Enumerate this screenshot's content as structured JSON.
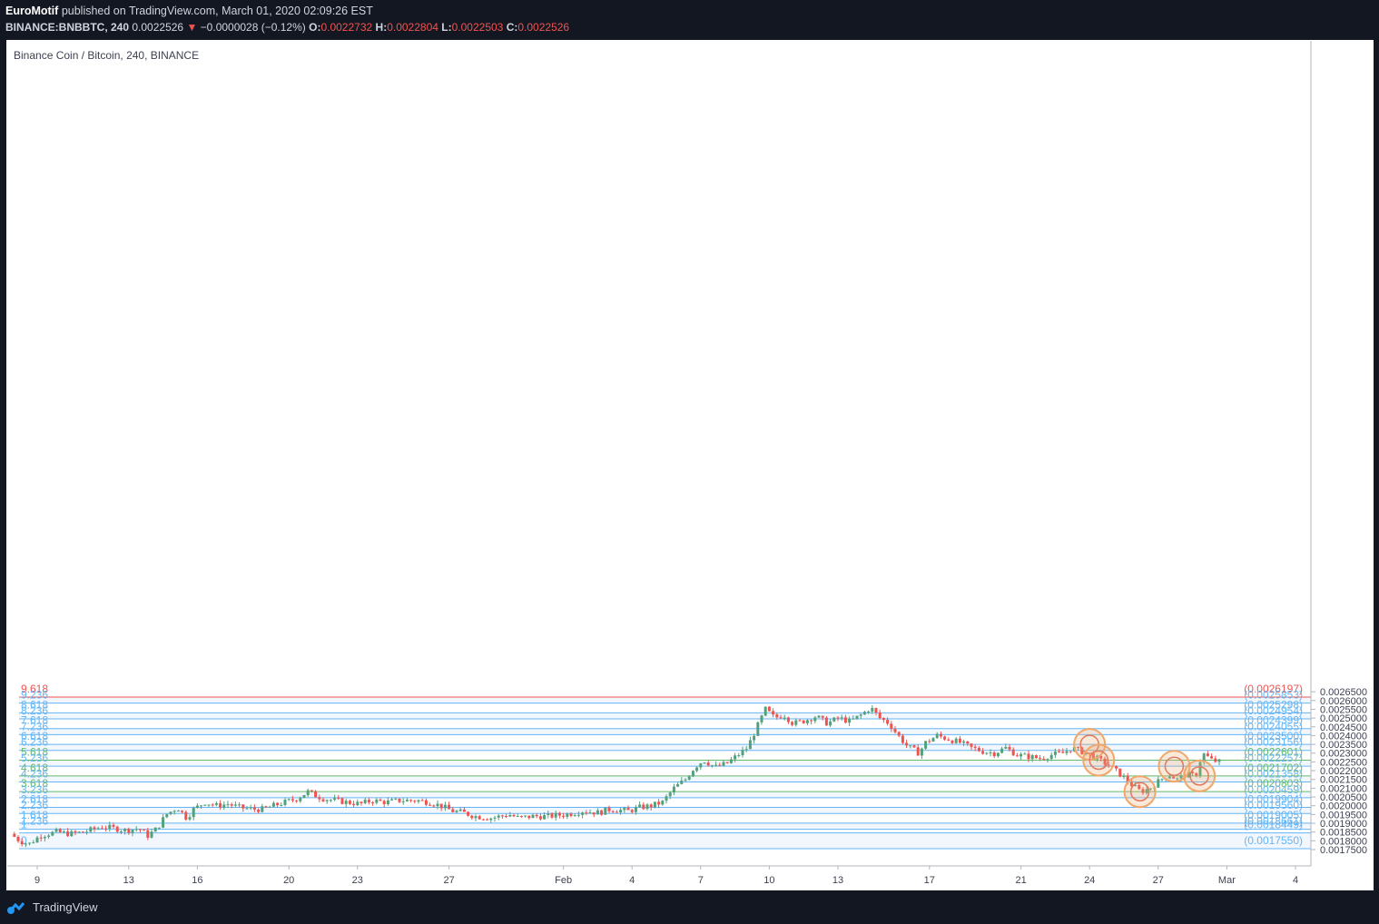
{
  "header": {
    "publisher": "EuroMotif",
    "published_text": "published on TradingView.com, March 01, 2020 02:09:26 EST",
    "symbol": "BINANCE:BNBBTC, 240",
    "last": "0.0022526",
    "change": "−0.0000028 (−0.12%)",
    "o_label": "O:",
    "o": "0.0022732",
    "h_label": "H:",
    "h": "0.0022804",
    "l_label": "L:",
    "l": "0.0022503",
    "c_label": "C:",
    "c": "0.0022526"
  },
  "chart_title": "Binance Coin / Bitcoin, 240, BINANCE",
  "footer": {
    "brand": "TradingView"
  },
  "colors": {
    "up": "#53a17c",
    "down": "#ef5350",
    "fib_blue": "#64b5f6",
    "fib_green": "#66bb6a",
    "fib_red": "#ef5350",
    "marker": "#f0a76a"
  },
  "chart_data": {
    "type": "candlestick",
    "title": "Binance Coin / Bitcoin, 240, BINANCE",
    "ylim": [
      0.00172,
      0.00268
    ],
    "y_ticks": [
      "0.0017500",
      "0.0018000",
      "0.0018500",
      "0.0019000",
      "0.0019500",
      "0.0020000",
      "0.0020500",
      "0.0021000",
      "0.0021500",
      "0.0022000",
      "0.0022500",
      "0.0023000",
      "0.0023500",
      "0.0024000",
      "0.0024500",
      "0.0025000",
      "0.0025500",
      "0.0026000",
      "0.0026500"
    ],
    "x_ticks": [
      {
        "label": "9",
        "day": 9
      },
      {
        "label": "13",
        "day": 13
      },
      {
        "label": "16",
        "day": 16
      },
      {
        "label": "20",
        "day": 20
      },
      {
        "label": "23",
        "day": 23
      },
      {
        "label": "27",
        "day": 27
      },
      {
        "label": "Feb",
        "day": 32
      },
      {
        "label": "4",
        "day": 35
      },
      {
        "label": "7",
        "day": 38
      },
      {
        "label": "10",
        "day": 41
      },
      {
        "label": "13",
        "day": 44
      },
      {
        "label": "17",
        "day": 48
      },
      {
        "label": "21",
        "day": 52
      },
      {
        "label": "24",
        "day": 55
      },
      {
        "label": "27",
        "day": 58
      },
      {
        "label": "Mar",
        "day": 61
      },
      {
        "label": "4",
        "day": 64
      }
    ],
    "fib_levels": [
      {
        "ratio": "9.618",
        "price": "0.0026197",
        "color": "red"
      },
      {
        "ratio": "9.236",
        "price": "0.0025853",
        "color": "blue"
      },
      {
        "ratio": "8.618",
        "price": "0.0025298",
        "color": "blue"
      },
      {
        "ratio": "8.236",
        "price": "0.0024954",
        "color": "blue"
      },
      {
        "ratio": "7.618",
        "price": "0.0024399",
        "color": "blue"
      },
      {
        "ratio": "7.236",
        "price": "0.0024055",
        "color": "blue"
      },
      {
        "ratio": "6.618",
        "price": "0.0023500",
        "color": "blue"
      },
      {
        "ratio": "6.236",
        "price": "0.0023156",
        "color": "blue"
      },
      {
        "ratio": "5.618",
        "price": "0.0022601",
        "color": "green"
      },
      {
        "ratio": "5.236",
        "price": "0.0022257",
        "color": "blue"
      },
      {
        "ratio": "4.618",
        "price": "0.0021702",
        "color": "green"
      },
      {
        "ratio": "4.236",
        "price": "0.0021358",
        "color": "blue"
      },
      {
        "ratio": "3.618",
        "price": "0.0020803",
        "color": "green"
      },
      {
        "ratio": "3.236",
        "price": "0.0020459",
        "color": "blue"
      },
      {
        "ratio": "2.618",
        "price": "0.0019904",
        "color": "blue"
      },
      {
        "ratio": "2.236",
        "price": "0.0019560",
        "color": "blue"
      },
      {
        "ratio": "1.618",
        "price": "0.0019005",
        "color": "blue"
      },
      {
        "ratio": "1.236",
        "price": "0.0018661",
        "color": "blue"
      },
      {
        "ratio": "1",
        "price": "0.0018449",
        "color": "blue"
      },
      {
        "ratio": "0",
        "price": "0.0017550",
        "color": "blue"
      }
    ],
    "price_path": [
      [
        8.0,
        0.00184
      ],
      [
        8.4,
        0.0018
      ],
      [
        8.8,
        0.00178
      ],
      [
        9.3,
        0.00183
      ],
      [
        10.0,
        0.00185
      ],
      [
        10.6,
        0.00184
      ],
      [
        11.2,
        0.00185
      ],
      [
        12.0,
        0.00188
      ],
      [
        12.6,
        0.00187
      ],
      [
        13.0,
        0.00186
      ],
      [
        13.6,
        0.00187
      ],
      [
        14.0,
        0.00183
      ],
      [
        14.4,
        0.00187
      ],
      [
        14.8,
        0.00195
      ],
      [
        15.3,
        0.00199
      ],
      [
        15.7,
        0.00193
      ],
      [
        16.0,
        0.00198
      ],
      [
        16.5,
        0.00202
      ],
      [
        17.0,
        0.002
      ],
      [
        17.5,
        0.00201
      ],
      [
        18.0,
        0.00199
      ],
      [
        18.6,
        0.00198
      ],
      [
        19.0,
        0.00198
      ],
      [
        19.5,
        0.002
      ],
      [
        20.0,
        0.00202
      ],
      [
        20.5,
        0.00204
      ],
      [
        21.0,
        0.00208
      ],
      [
        21.3,
        0.00206
      ],
      [
        21.7,
        0.00204
      ],
      [
        22.2,
        0.00203
      ],
      [
        22.7,
        0.00202
      ],
      [
        23.3,
        0.00201
      ],
      [
        23.8,
        0.00203
      ],
      [
        24.4,
        0.00202
      ],
      [
        25.0,
        0.00203
      ],
      [
        25.8,
        0.00203
      ],
      [
        26.3,
        0.00202
      ],
      [
        26.8,
        0.002
      ],
      [
        27.3,
        0.00197
      ],
      [
        27.8,
        0.00196
      ],
      [
        28.3,
        0.00194
      ],
      [
        29.0,
        0.00193
      ],
      [
        29.8,
        0.00195
      ],
      [
        30.2,
        0.00193
      ],
      [
        30.8,
        0.00194
      ],
      [
        31.5,
        0.00194
      ],
      [
        32.3,
        0.00195
      ],
      [
        33.0,
        0.00197
      ],
      [
        33.7,
        0.00196
      ],
      [
        34.2,
        0.00198
      ],
      [
        35.0,
        0.00197
      ],
      [
        35.5,
        0.00199
      ],
      [
        36.0,
        0.002
      ],
      [
        36.5,
        0.00202
      ],
      [
        37.0,
        0.0021
      ],
      [
        37.5,
        0.00215
      ],
      [
        37.9,
        0.00222
      ],
      [
        38.3,
        0.00226
      ],
      [
        38.8,
        0.00222
      ],
      [
        39.3,
        0.00224
      ],
      [
        39.7,
        0.00228
      ],
      [
        40.2,
        0.00233
      ],
      [
        40.6,
        0.00244
      ],
      [
        41.0,
        0.00255
      ],
      [
        41.4,
        0.0025
      ],
      [
        41.8,
        0.00252
      ],
      [
        42.2,
        0.00247
      ],
      [
        42.6,
        0.00248
      ],
      [
        43.2,
        0.00251
      ],
      [
        43.7,
        0.00247
      ],
      [
        44.2,
        0.0025
      ],
      [
        44.7,
        0.00248
      ],
      [
        45.2,
        0.00252
      ],
      [
        45.6,
        0.00256
      ],
      [
        46.0,
        0.0025
      ],
      [
        46.4,
        0.00247
      ],
      [
        46.8,
        0.0024
      ],
      [
        47.2,
        0.00234
      ],
      [
        47.7,
        0.0023
      ],
      [
        48.0,
        0.00236
      ],
      [
        48.5,
        0.0024
      ],
      [
        49.0,
        0.00238
      ],
      [
        49.5,
        0.00236
      ],
      [
        50.0,
        0.00233
      ],
      [
        50.5,
        0.00231
      ],
      [
        51.0,
        0.0023
      ],
      [
        51.5,
        0.00233
      ],
      [
        52.0,
        0.00229
      ],
      [
        52.5,
        0.00228
      ],
      [
        53.0,
        0.00227
      ],
      [
        53.5,
        0.00229
      ],
      [
        54.0,
        0.0023
      ],
      [
        54.4,
        0.00233
      ],
      [
        54.8,
        0.00231
      ],
      [
        55.2,
        0.00229
      ],
      [
        55.6,
        0.00226
      ],
      [
        56.0,
        0.00223
      ],
      [
        56.5,
        0.00218
      ],
      [
        57.0,
        0.00212
      ],
      [
        57.4,
        0.00208
      ],
      [
        57.8,
        0.0021
      ],
      [
        58.2,
        0.00214
      ],
      [
        58.6,
        0.00218
      ],
      [
        59.0,
        0.00215
      ],
      [
        59.4,
        0.00218
      ],
      [
        59.8,
        0.00217
      ],
      [
        60.1,
        0.0023
      ],
      [
        60.5,
        0.00226
      ],
      [
        60.8,
        0.00225
      ]
    ],
    "markers": [
      {
        "day": 55.0,
        "price": 0.00235
      },
      {
        "day": 55.4,
        "price": 0.00226
      },
      {
        "day": 57.2,
        "price": 0.00208
      },
      {
        "day": 58.7,
        "price": 0.002225
      },
      {
        "day": 59.8,
        "price": 0.00217
      }
    ]
  }
}
